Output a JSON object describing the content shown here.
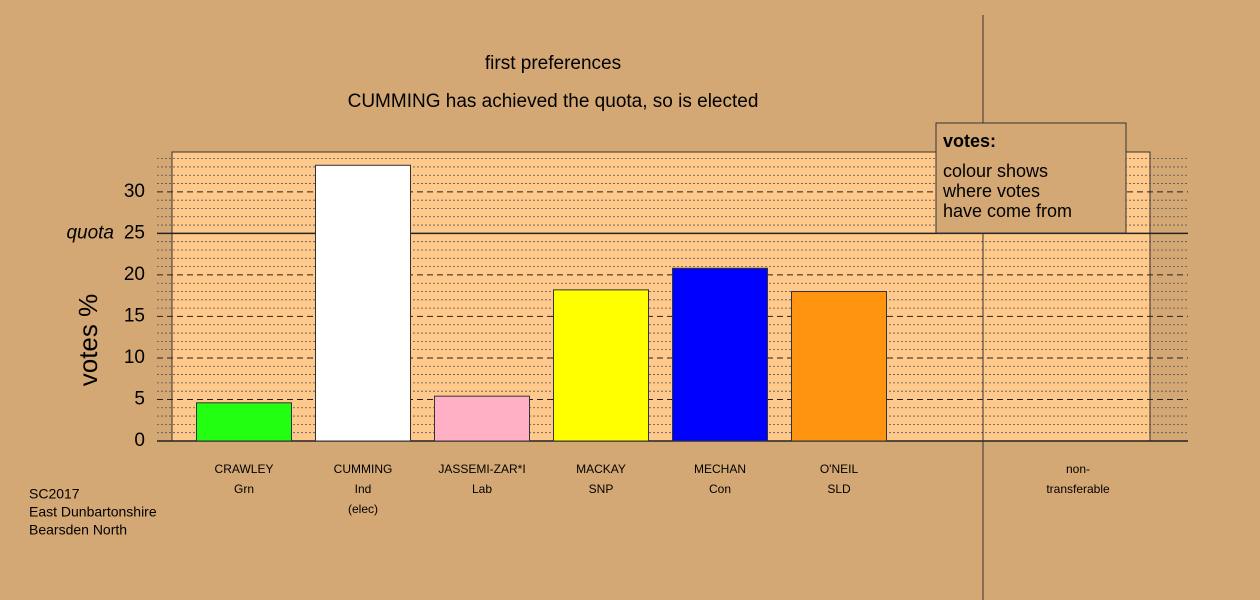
{
  "chart_data": {
    "type": "bar",
    "title": "first preferences",
    "subtitle": "CUMMING has achieved the quota, so is elected",
    "y_label": "votes %",
    "categories": [
      "CRAWLEY",
      "CUMMING",
      "JASSEMI-ZAR*I",
      "MACKAY",
      "MECHAN",
      "O'NEIL"
    ],
    "parties": [
      "Grn",
      "Ind",
      "Lab",
      "SNP",
      "Con",
      "SLD"
    ],
    "notes": [
      null,
      "(elec)",
      null,
      null,
      null,
      null
    ],
    "values": [
      4.6,
      33.2,
      5.4,
      18.2,
      20.8,
      18.0
    ],
    "colors": [
      "#22ff11",
      "#ffffff",
      "#ffb0c4",
      "#ffff00",
      "#0000ff",
      "#ff9410"
    ],
    "nontransferable_label": [
      "non-",
      "transferable"
    ],
    "quota_label": "quota",
    "quota": 25,
    "ylim": [
      0,
      34.8
    ],
    "yticks": [
      0,
      5,
      10,
      15,
      20,
      25,
      30
    ],
    "minor_yticks": [
      1,
      2,
      3,
      4,
      6,
      7,
      8,
      9,
      11,
      12,
      13,
      14,
      16,
      17,
      18,
      19,
      21,
      22,
      23,
      24,
      26,
      27,
      28,
      29,
      31,
      32,
      33,
      34
    ],
    "grid": true,
    "legend": {
      "title": "votes:",
      "lines": [
        "colour shows",
        "where votes",
        "have come from"
      ]
    },
    "footnote": [
      "SC2017",
      "East Dunbartonshire",
      "Bearsden North"
    ]
  }
}
